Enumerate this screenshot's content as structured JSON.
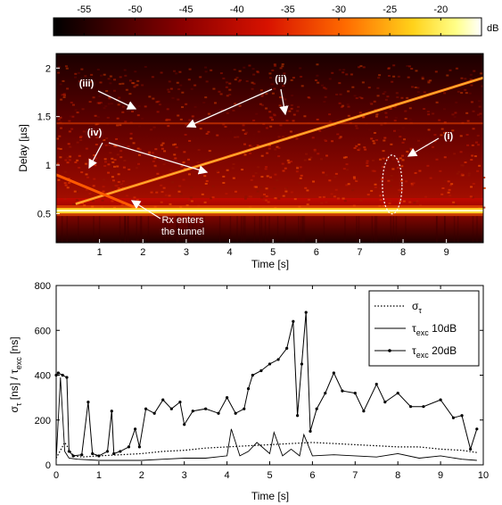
{
  "chart_data": [
    {
      "type": "heatmap",
      "colorbar": {
        "unit": "dB",
        "ticks": [
          -55,
          -50,
          -45,
          -40,
          -35,
          -30,
          -25,
          -20
        ],
        "range": [
          -58,
          -16
        ]
      },
      "xlabel": "Time [s]",
      "ylabel": "Delay [µs]",
      "xlim": [
        0,
        9.85
      ],
      "ylim": [
        0.2,
        2.15
      ],
      "xticks": [
        1,
        2,
        3,
        4,
        5,
        6,
        7,
        8,
        9
      ],
      "yticks": [
        0.5,
        1,
        1.5,
        2
      ],
      "features": {
        "main_path_delay": 0.53,
        "rising_trace": {
          "from": [
            0.45,
            0.6
          ],
          "to": [
            9.85,
            1.9
          ]
        },
        "falling_trace": {
          "from": [
            0,
            0.9
          ],
          "to": [
            2.0,
            0.53
          ]
        },
        "ring_trace_delay": 1.43
      },
      "annotations": [
        {
          "label": "(i)"
        },
        {
          "label": "(ii)"
        },
        {
          "label": "(iii)"
        },
        {
          "label": "(iv)"
        },
        {
          "label": "Rx enters\nthe tunnel"
        }
      ]
    },
    {
      "type": "line",
      "xlabel": "Time [s]",
      "ylabel": "σ_τ [ns] / τ_exc [ns]",
      "xlim": [
        0,
        10
      ],
      "ylim": [
        0,
        800
      ],
      "xticks": [
        0,
        1,
        2,
        3,
        4,
        5,
        6,
        7,
        8,
        9,
        10
      ],
      "yticks": [
        0,
        200,
        400,
        600,
        800
      ],
      "legend": {
        "placement": "top-right",
        "entries": [
          {
            "symbol": "σ",
            "subscript": "τ",
            "suffix": ""
          },
          {
            "symbol": "τ",
            "subscript": "exc",
            "suffix": "  10dB"
          },
          {
            "symbol": "τ",
            "subscript": "exc",
            "suffix": "  20dB"
          }
        ]
      },
      "series": [
        {
          "style": "dotted",
          "x": [
            0,
            0.2,
            0.4,
            0.6,
            1.0,
            1.5,
            2.0,
            2.5,
            3.0,
            3.5,
            4.0,
            4.5,
            5.0,
            5.5,
            6.0,
            6.5,
            7.0,
            7.5,
            8.0,
            8.5,
            9.0,
            9.5,
            9.85
          ],
          "y": [
            30,
            100,
            40,
            35,
            40,
            45,
            50,
            60,
            65,
            75,
            80,
            85,
            90,
            95,
            100,
            95,
            90,
            85,
            80,
            80,
            70,
            65,
            55
          ]
        },
        {
          "style": "solid",
          "x": [
            0,
            0.1,
            0.2,
            0.3,
            0.5,
            1.0,
            1.5,
            2.0,
            2.5,
            3.0,
            3.5,
            4.0,
            4.1,
            4.3,
            4.5,
            4.7,
            5.0,
            5.1,
            5.3,
            5.5,
            5.7,
            5.8,
            6.0,
            6.5,
            7.0,
            7.5,
            8.0,
            8.5,
            9.0,
            9.5,
            9.85
          ],
          "y": [
            20,
            390,
            60,
            30,
            25,
            20,
            20,
            20,
            25,
            30,
            30,
            40,
            160,
            40,
            60,
            100,
            50,
            145,
            40,
            70,
            40,
            135,
            40,
            45,
            40,
            35,
            50,
            30,
            40,
            25,
            20
          ]
        },
        {
          "style": "line-dot",
          "x": [
            0,
            0.05,
            0.15,
            0.25,
            0.3,
            0.4,
            0.6,
            0.75,
            0.85,
            1.0,
            1.2,
            1.3,
            1.35,
            1.5,
            1.7,
            1.85,
            1.95,
            2.1,
            2.3,
            2.5,
            2.7,
            2.9,
            3.0,
            3.2,
            3.5,
            3.8,
            4.0,
            4.2,
            4.4,
            4.5,
            4.6,
            4.8,
            5.0,
            5.2,
            5.4,
            5.55,
            5.65,
            5.75,
            5.85,
            5.95,
            6.1,
            6.3,
            6.5,
            6.7,
            7.0,
            7.2,
            7.5,
            7.7,
            8.0,
            8.3,
            8.6,
            9.0,
            9.3,
            9.5,
            9.7,
            9.85
          ],
          "y": [
            400,
            410,
            400,
            390,
            60,
            40,
            45,
            280,
            50,
            40,
            60,
            240,
            50,
            60,
            80,
            160,
            80,
            250,
            230,
            290,
            250,
            280,
            180,
            240,
            250,
            230,
            300,
            230,
            250,
            340,
            400,
            420,
            450,
            470,
            520,
            640,
            220,
            450,
            680,
            150,
            250,
            320,
            410,
            330,
            320,
            240,
            360,
            280,
            320,
            260,
            260,
            290,
            210,
            220,
            70,
            160
          ]
        }
      ]
    }
  ]
}
